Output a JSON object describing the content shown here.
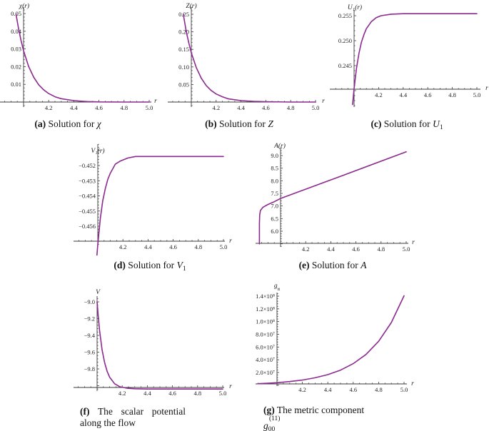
{
  "captions": {
    "a": {
      "tag": "(a)",
      "text": "Solution for",
      "var": "χ"
    },
    "b": {
      "tag": "(b)",
      "text": "Solution for",
      "var": "Z"
    },
    "c": {
      "tag": "(c)",
      "text": "Solution for",
      "var": "U",
      "sub": "1"
    },
    "d": {
      "tag": "(d)",
      "text": "Solution for",
      "var": "V",
      "sub": "1"
    },
    "e": {
      "tag": "(e)",
      "text": "Solution for",
      "var": "A"
    },
    "f": {
      "tag": "(f)",
      "line1": "The scalar potential",
      "line2": "along the flow"
    },
    "g": {
      "tag": "(g)",
      "line1": "The metric component",
      "symbol": "g",
      "sub": "00",
      "sup": "(11)"
    }
  },
  "chart_data": [
    {
      "id": "a",
      "type": "line",
      "title": "(a) Solution for χ",
      "xlabel": "r",
      "ylabel": "χ(r)",
      "xlim": [
        3.94,
        5.0
      ],
      "ylim": [
        0,
        0.05
      ],
      "grid": false,
      "legend": null,
      "xticks": [
        4.2,
        4.4,
        4.6,
        4.8,
        5.0
      ],
      "xtick_labels": [
        "4.2",
        "4.4",
        "4.6",
        "4.8",
        "5.0"
      ],
      "yticks": [
        0.01,
        0.02,
        0.03,
        0.04,
        0.05
      ],
      "ytick_labels": [
        "0.01",
        "0.02",
        "0.03",
        "0.04",
        "0.05"
      ],
      "series": [
        {
          "name": "χ(r)",
          "color": "#8b2a8f",
          "x": [
            3.94,
            3.96,
            3.98,
            4.0,
            4.04,
            4.08,
            4.12,
            4.16,
            4.2,
            4.25,
            4.3,
            4.4,
            4.5,
            4.6,
            4.8,
            5.0
          ],
          "y": [
            0.0497,
            0.0415,
            0.0347,
            0.029,
            0.0202,
            0.0141,
            0.0098,
            0.0069,
            0.0048,
            0.003,
            0.0019,
            0.0008,
            0.0003,
            0.0001,
            0.0,
            0.0
          ]
        }
      ]
    },
    {
      "id": "b",
      "type": "line",
      "title": "(b) Solution for Z",
      "xlabel": "r",
      "ylabel": "Z(r)",
      "xlim": [
        3.935,
        5.0
      ],
      "ylim": [
        0,
        0.25
      ],
      "grid": false,
      "legend": null,
      "xticks": [
        4.2,
        4.4,
        4.6,
        4.8,
        5.0
      ],
      "xtick_labels": [
        "4.2",
        "4.4",
        "4.6",
        "4.8",
        "5.0"
      ],
      "yticks": [
        0.05,
        0.1,
        0.15,
        0.2,
        0.25
      ],
      "ytick_labels": [
        "0.05",
        "0.10",
        "0.15",
        "0.20",
        "0.25"
      ],
      "series": [
        {
          "name": "Z(r)",
          "color": "#8b2a8f",
          "x": [
            3.935,
            3.96,
            3.98,
            4.0,
            4.04,
            4.08,
            4.12,
            4.16,
            4.2,
            4.25,
            4.3,
            4.4,
            4.5,
            4.6,
            4.8,
            5.0
          ],
          "y": [
            0.251,
            0.2,
            0.168,
            0.14,
            0.098,
            0.068,
            0.047,
            0.033,
            0.023,
            0.015,
            0.009,
            0.004,
            0.002,
            0.001,
            0.0,
            0.0
          ]
        }
      ]
    },
    {
      "id": "c",
      "type": "line",
      "title": "(c) Solution for U1",
      "xlabel": "r",
      "ylabel": "U₁(r)",
      "xlim": [
        3.988,
        5.0
      ],
      "ylim": [
        0.237,
        0.2555
      ],
      "grid": false,
      "legend": null,
      "xticks": [
        4.2,
        4.4,
        4.6,
        4.8,
        5.0
      ],
      "xtick_labels": [
        "4.2",
        "4.4",
        "4.6",
        "4.8",
        "5.0"
      ],
      "yticks": [
        0.245,
        0.25,
        0.255
      ],
      "ytick_labels": [
        "0.245",
        "0.250",
        "0.255"
      ],
      "series": [
        {
          "name": "U₁(r)",
          "color": "#8b2a8f",
          "x": [
            3.988,
            4.0,
            4.02,
            4.04,
            4.06,
            4.08,
            4.1,
            4.14,
            4.18,
            4.22,
            4.3,
            4.4,
            5.0
          ],
          "y": [
            0.2372,
            0.2404,
            0.2445,
            0.2475,
            0.2497,
            0.2512,
            0.2524,
            0.2538,
            0.2546,
            0.255,
            0.2553,
            0.2554,
            0.2554
          ]
        }
      ]
    },
    {
      "id": "d",
      "type": "line",
      "title": "(d) Solution for V1",
      "xlabel": "r",
      "ylabel": "V₁(r)",
      "xlim": [
        3.993,
        5.0
      ],
      "ylim": [
        -0.4579,
        -0.4514
      ],
      "grid": false,
      "legend": null,
      "xticks": [
        4.2,
        4.4,
        4.6,
        4.8,
        5.0
      ],
      "xtick_labels": [
        "4.2",
        "4.4",
        "4.6",
        "4.8",
        "5.0"
      ],
      "yticks": [
        -0.452,
        -0.453,
        -0.454,
        -0.455,
        -0.456
      ],
      "ytick_labels": [
        "−0.452",
        "−0.453",
        "−0.454",
        "−0.455",
        "−0.456"
      ],
      "series": [
        {
          "name": "V₁(r)",
          "color": "#8b2a8f",
          "x": [
            3.993,
            4.0,
            4.02,
            4.04,
            4.06,
            4.08,
            4.1,
            4.14,
            4.18,
            4.24,
            4.3,
            5.0
          ],
          "y": [
            -0.4579,
            -0.4572,
            -0.4555,
            -0.4543,
            -0.4535,
            -0.4529,
            -0.4525,
            -0.4519,
            -0.4517,
            -0.4515,
            -0.4514,
            -0.4514
          ]
        }
      ]
    },
    {
      "id": "e",
      "type": "line",
      "title": "(e) Solution for A",
      "xlabel": "r",
      "ylabel": "A(r)",
      "xlim": [
        3.832,
        5.0
      ],
      "ylim": [
        5.5,
        9.15
      ],
      "grid": false,
      "legend": null,
      "xticks": [
        4.2,
        4.4,
        4.6,
        4.8,
        5.0
      ],
      "xtick_labels": [
        "4.2",
        "4.4",
        "4.6",
        "4.8",
        "5.0"
      ],
      "yticks": [
        6.0,
        6.5,
        7.0,
        7.5,
        8.0,
        8.5,
        9.0
      ],
      "ytick_labels": [
        "6.0",
        "6.5",
        "7.0",
        "7.5",
        "8.0",
        "8.5",
        "9.0"
      ],
      "series": [
        {
          "name": "A(r)",
          "color": "#8b2a8f",
          "x": [
            3.832,
            3.832,
            3.834,
            3.84,
            3.86,
            3.9,
            3.95,
            4.0,
            4.5,
            5.0
          ],
          "y": [
            5.5,
            6.3,
            6.65,
            6.82,
            6.95,
            7.06,
            7.17,
            7.3,
            8.22,
            9.15
          ]
        }
      ]
    },
    {
      "id": "f",
      "type": "line",
      "title": "(f) The scalar potential along the flow",
      "xlabel": "r",
      "ylabel": "V",
      "xlim": [
        4.0,
        5.0
      ],
      "ylim": [
        -10.04,
        -9.0
      ],
      "grid": false,
      "legend": null,
      "xticks": [
        4.2,
        4.4,
        4.6,
        4.8,
        5.0
      ],
      "xtick_labels": [
        "4.2",
        "4.4",
        "4.6",
        "4.8",
        "5.0"
      ],
      "yticks": [
        -9.0,
        -9.2,
        -9.4,
        -9.6,
        -9.8
      ],
      "ytick_labels": [
        "−9.0",
        "−9.2",
        "−9.4",
        "−9.6",
        "−9.8"
      ],
      "series": [
        {
          "name": "V",
          "color": "#8b2a8f",
          "x": [
            4.0,
            4.01,
            4.02,
            4.04,
            4.06,
            4.08,
            4.1,
            4.14,
            4.18,
            4.24,
            4.3,
            4.4,
            5.0
          ],
          "y": [
            -9.0,
            -9.188,
            -9.343,
            -9.573,
            -9.727,
            -9.83,
            -9.899,
            -9.977,
            -10.012,
            -10.031,
            -10.037,
            -10.04,
            -10.04
          ]
        }
      ]
    },
    {
      "id": "g",
      "type": "line",
      "title": "(g) The metric component g00(11)",
      "xlabel": "r",
      "ylabel": "g_tt",
      "xlim": [
        3.85,
        5.0
      ],
      "ylim": [
        0,
        140600000.0
      ],
      "grid": false,
      "legend": null,
      "xticks": [
        4.2,
        4.4,
        4.6,
        4.8,
        5.0
      ],
      "xtick_labels": [
        "4.2",
        "4.4",
        "4.6",
        "4.8",
        "5.0"
      ],
      "yticks": [
        20000000.0,
        40000000.0,
        60000000.0,
        80000000.0,
        100000000.0,
        120000000.0,
        140000000.0
      ],
      "ytick_labels": [
        "2.0×10⁷",
        "4.0×10⁷",
        "6.0×10⁷",
        "8.0×10⁷",
        "1.0×10⁸",
        "1.2×10⁸",
        "1.4×10⁸"
      ],
      "series": [
        {
          "name": "g_tt",
          "color": "#8b2a8f",
          "x": [
            3.85,
            3.9,
            4.0,
            4.1,
            4.2,
            4.3,
            4.4,
            4.5,
            4.6,
            4.7,
            4.8,
            4.9,
            5.0
          ],
          "y": [
            2350000.0,
            2800000.0,
            4000000.0,
            5710000.0,
            8150000.0,
            11650000.0,
            16600000.0,
            23700000.0,
            33900000.0,
            48300000.0,
            69000000.0,
            98500000.0,
            140600000.0
          ]
        }
      ]
    }
  ]
}
